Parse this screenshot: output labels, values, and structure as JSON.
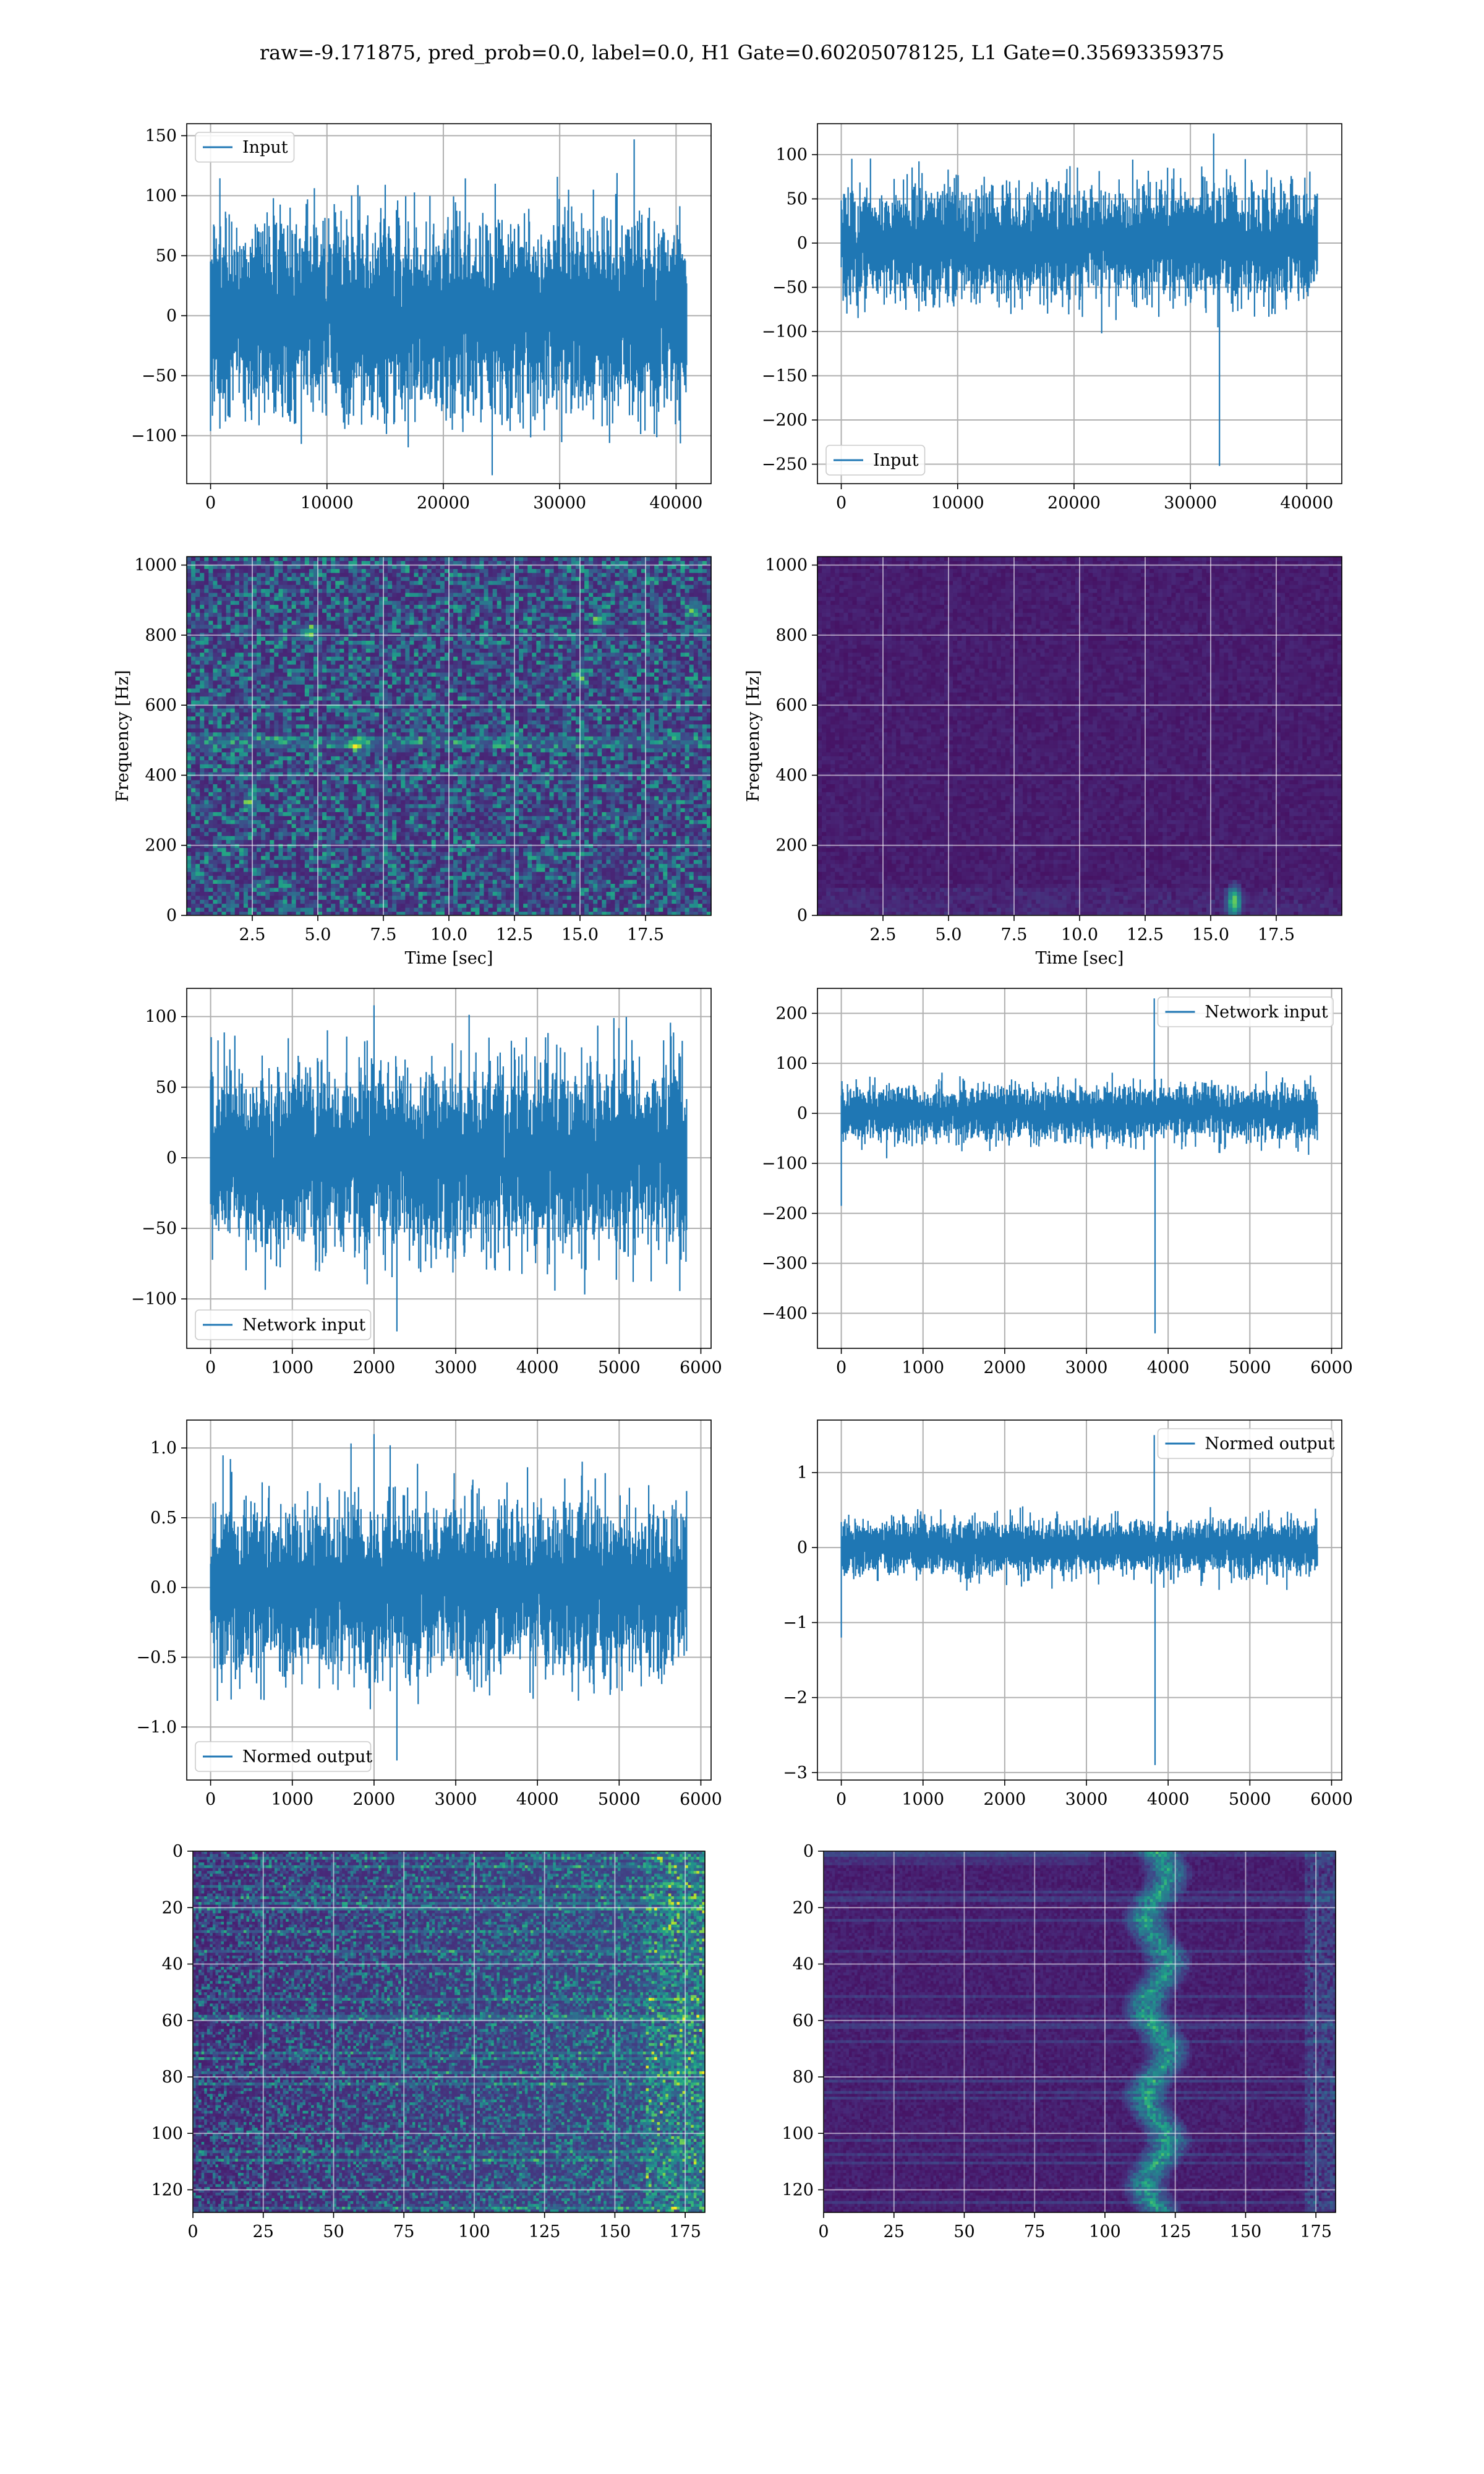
{
  "figure": {
    "title": "raw=-9.171875, pred_prob=0.0, label=0.0, H1 Gate=0.60205078125, L1 Gate=0.35693359375"
  },
  "chart_data": [
    {
      "id": "h1-input",
      "type": "line",
      "color": "#1f77b4",
      "legend_position": "upper-left",
      "series": [
        {
          "name": "Input",
          "n_points": 40960,
          "noise_std": 38,
          "envelope_typical": [
            -100,
            120
          ],
          "extremes": [
            {
              "x": 24200,
              "y": -133
            },
            {
              "x": 36400,
              "y": 147
            }
          ]
        }
      ],
      "xlim": [
        -2048,
        43008
      ],
      "ylim": [
        -140,
        160
      ],
      "xticks": [
        0,
        10000,
        20000,
        30000,
        40000
      ],
      "yticks": [
        -100,
        -50,
        0,
        50,
        100,
        150
      ],
      "grid": true
    },
    {
      "id": "l1-input",
      "type": "line",
      "color": "#1f77b4",
      "legend_position": "lower-left",
      "series": [
        {
          "name": "Input",
          "n_points": 40960,
          "noise_std": 30,
          "envelope_typical": [
            -100,
            100
          ],
          "extremes": [
            {
              "x": 32500,
              "y": -252
            },
            {
              "x": 32000,
              "y": 124
            }
          ]
        }
      ],
      "xlim": [
        -2048,
        43008
      ],
      "ylim": [
        -272,
        135
      ],
      "xticks": [
        0,
        10000,
        20000,
        30000,
        40000
      ],
      "yticks": [
        -250,
        -200,
        -150,
        -100,
        -50,
        0,
        50,
        100
      ],
      "grid": true
    },
    {
      "id": "h1-spectrogram",
      "type": "heatmap",
      "colormap": "viridis",
      "xlabel": "Time [sec]",
      "ylabel": "Frequency [Hz]",
      "xlim": [
        0,
        20
      ],
      "ylim": [
        0,
        1024
      ],
      "xticks": [
        "2.5",
        "5.0",
        "7.5",
        "10.0",
        "12.5",
        "15.0",
        "17.5"
      ],
      "yticks": [
        "0",
        "200",
        "400",
        "600",
        "800",
        "1000"
      ],
      "hot_spots": [
        {
          "t": 4.7,
          "f": 810
        },
        {
          "t": 6.5,
          "f": 490
        },
        {
          "t": 15.0,
          "f": 680
        },
        {
          "t": 19.3,
          "f": 870
        },
        {
          "t": 15.8,
          "f": 845
        },
        {
          "t": 2.4,
          "f": 320
        }
      ],
      "grid": true
    },
    {
      "id": "l1-spectrogram",
      "type": "heatmap",
      "colormap": "viridis",
      "xlabel": "Time [sec]",
      "ylabel": "Frequency [Hz]",
      "xlim": [
        0,
        20
      ],
      "ylim": [
        0,
        1024
      ],
      "xticks": [
        "2.5",
        "5.0",
        "7.5",
        "10.0",
        "12.5",
        "15.0",
        "17.5"
      ],
      "yticks": [
        "0",
        "200",
        "400",
        "600",
        "800",
        "1000"
      ],
      "hot_spots": [
        {
          "t": 15.9,
          "f": 40
        }
      ],
      "grid": true
    },
    {
      "id": "h1-network-input",
      "type": "line",
      "color": "#1f77b4",
      "legend_position": "lower-left",
      "series": [
        {
          "name": "Network input",
          "n_points": 5833,
          "noise_std": 30,
          "envelope_typical": [
            -100,
            105
          ],
          "extremes": [
            {
              "x": 2280,
              "y": -123
            },
            {
              "x": 2000,
              "y": 108
            }
          ]
        }
      ],
      "xlim": [
        -292,
        6125
      ],
      "ylim": [
        -135,
        120
      ],
      "xticks": [
        0,
        1000,
        2000,
        3000,
        4000,
        5000,
        6000
      ],
      "yticks": [
        -100,
        -50,
        0,
        50,
        100
      ],
      "grid": true
    },
    {
      "id": "l1-network-input",
      "type": "line",
      "color": "#1f77b4",
      "legend_position": "upper-right",
      "series": [
        {
          "name": "Network input",
          "n_points": 5833,
          "noise_std": 25,
          "envelope_typical": [
            -90,
            90
          ],
          "extremes": [
            {
              "x": 3840,
              "y": -440
            },
            {
              "x": 3830,
              "y": 230
            },
            {
              "x": 0,
              "y": -185
            }
          ]
        }
      ],
      "xlim": [
        -292,
        6125
      ],
      "ylim": [
        -470,
        250
      ],
      "xticks": [
        0,
        1000,
        2000,
        3000,
        4000,
        5000,
        6000
      ],
      "yticks": [
        -400,
        -300,
        -200,
        -100,
        0,
        100,
        200
      ],
      "grid": true
    },
    {
      "id": "h1-normed-output",
      "type": "line",
      "color": "#1f77b4",
      "legend_position": "lower-left",
      "series": [
        {
          "name": "Normed output",
          "n_points": 5833,
          "noise_std": 0.28,
          "envelope_typical": [
            -1.0,
            1.0
          ],
          "extremes": [
            {
              "x": 2280,
              "y": -1.24
            },
            {
              "x": 2000,
              "y": 1.1
            }
          ]
        }
      ],
      "xlim": [
        -292,
        6125
      ],
      "ylim": [
        -1.38,
        1.2
      ],
      "xticks": [
        0,
        1000,
        2000,
        3000,
        4000,
        5000,
        6000
      ],
      "yticks": [
        -1.0,
        -0.5,
        0.0,
        0.5,
        1.0
      ],
      "ytick_format": "fixed1",
      "grid": true
    },
    {
      "id": "l1-normed-output",
      "type": "line",
      "color": "#1f77b4",
      "legend_position": "upper-right",
      "series": [
        {
          "name": "Normed output",
          "n_points": 5833,
          "noise_std": 0.17,
          "envelope_typical": [
            -0.6,
            0.6
          ],
          "extremes": [
            {
              "x": 3840,
              "y": -2.9
            },
            {
              "x": 3830,
              "y": 1.5
            },
            {
              "x": 0,
              "y": -1.2
            }
          ]
        }
      ],
      "xlim": [
        -292,
        6125
      ],
      "ylim": [
        -3.1,
        1.7
      ],
      "xticks": [
        0,
        1000,
        2000,
        3000,
        4000,
        5000,
        6000
      ],
      "yticks": [
        -3,
        -2,
        -1,
        0,
        1
      ],
      "grid": true
    },
    {
      "id": "h1-feature-map",
      "type": "heatmap",
      "colormap": "viridis",
      "rows": 128,
      "cols": 182,
      "xlim": [
        0,
        182
      ],
      "ylim": [
        128,
        0
      ],
      "xticks": [
        0,
        25,
        50,
        75,
        100,
        125,
        150,
        175
      ],
      "yticks": [
        0,
        20,
        40,
        60,
        80,
        100,
        120
      ],
      "pattern": "diffuse activity brightening toward the right edge",
      "grid": true
    },
    {
      "id": "l1-feature-map",
      "type": "heatmap",
      "colormap": "viridis",
      "rows": 128,
      "cols": 182,
      "xlim": [
        0,
        182
      ],
      "ylim": [
        128,
        0
      ],
      "xticks": [
        0,
        25,
        50,
        75,
        100,
        125,
        150,
        175
      ],
      "yticks": [
        0,
        20,
        40,
        60,
        80,
        100,
        120
      ],
      "pattern": "bright vertical band near column 115-125",
      "grid": true
    }
  ]
}
